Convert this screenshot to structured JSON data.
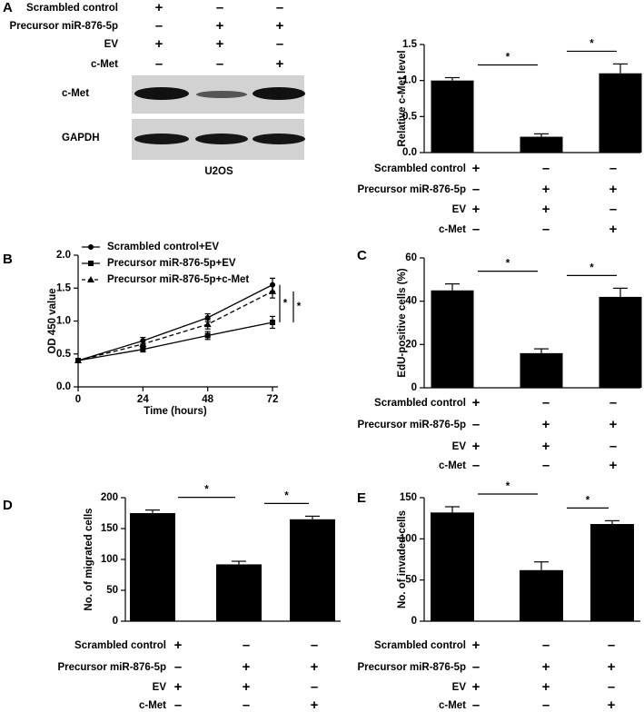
{
  "blot": {
    "panel": "A",
    "conditions": [
      {
        "label": "Scrambled control",
        "signs": [
          "+",
          "–",
          "–"
        ]
      },
      {
        "label": "Precursor miR-876-5p",
        "signs": [
          "–",
          "+",
          "+"
        ]
      },
      {
        "label": "EV",
        "signs": [
          "+",
          "+",
          "–"
        ]
      },
      {
        "label": "c-Met",
        "signs": [
          "–",
          "–",
          "+"
        ]
      }
    ],
    "bands": [
      "c-Met",
      "GAPDH"
    ],
    "cell_line": "U2OS"
  },
  "chart_data": [
    {
      "type": "bar",
      "ylabel": "Relative c-Met level",
      "values": [
        1.0,
        0.22,
        1.1
      ],
      "errors": [
        0.04,
        0.04,
        0.13
      ],
      "color": "#000000",
      "ylim": [
        0,
        1.5
      ],
      "yticks": [
        {
          "value": 0,
          "label": "0.0"
        },
        {
          "value": 0.5,
          "label": "0.5"
        },
        {
          "value": 1,
          "label": "1.0"
        },
        {
          "value": 1.5,
          "label": "1.5"
        }
      ],
      "annotations": [
        "*",
        "*"
      ],
      "conditions": [
        {
          "label": "Scrambled control",
          "signs": [
            "+",
            "–",
            "–"
          ]
        },
        {
          "label": "Precursor miR-876-5p",
          "signs": [
            "–",
            "+",
            "+"
          ]
        },
        {
          "label": "EV",
          "signs": [
            "+",
            "+",
            "–"
          ]
        },
        {
          "label": "c-Met",
          "signs": [
            "–",
            "–",
            "+"
          ]
        }
      ]
    },
    {
      "type": "line",
      "panel": "B",
      "xlabel": "Time (hours)",
      "ylabel": "OD 450 value",
      "x": [
        0,
        24,
        48,
        72
      ],
      "xlim": [
        0,
        72
      ],
      "xticks": [
        0,
        24,
        48,
        72
      ],
      "ylim": [
        0,
        2
      ],
      "yticks": [
        {
          "value": 0,
          "label": "0.0"
        },
        {
          "value": 0.5,
          "label": "0.5"
        },
        {
          "value": 1,
          "label": "1.0"
        },
        {
          "value": 1.5,
          "label": "1.5"
        },
        {
          "value": 2,
          "label": "2.0"
        }
      ],
      "series": [
        {
          "name": "Scrambled control+EV",
          "color": "#000000",
          "marker": "circle",
          "dash": "solid",
          "values": [
            0.4,
            0.7,
            1.05,
            1.55
          ],
          "errors": [
            0.02,
            0.05,
            0.06,
            0.1
          ]
        },
        {
          "name": "Precursor miR-876-5p+EV",
          "color": "#000000",
          "marker": "square",
          "dash": "solid",
          "values": [
            0.4,
            0.57,
            0.78,
            0.98
          ],
          "errors": [
            0.02,
            0.04,
            0.06,
            0.09
          ]
        },
        {
          "name": "Precursor miR-876-5p+c-Met",
          "color": "#000000",
          "marker": "triangle",
          "dash": "dashed",
          "values": [
            0.4,
            0.65,
            0.95,
            1.45
          ],
          "errors": [
            0.02,
            0.05,
            0.07,
            0.1
          ]
        }
      ],
      "annotations": [
        "*",
        "*"
      ]
    },
    {
      "type": "bar",
      "panel": "C",
      "ylabel": "EdU-positive cells (%)",
      "values": [
        45,
        16,
        42
      ],
      "errors": [
        3,
        2,
        4
      ],
      "color": "#000000",
      "ylim": [
        0,
        60
      ],
      "yticks": [
        0,
        20,
        40,
        60
      ],
      "annotations": [
        "*",
        "*"
      ],
      "conditions": [
        {
          "label": "Scrambled control",
          "signs": [
            "+",
            "–",
            "–"
          ]
        },
        {
          "label": "Precursor miR-876-5p",
          "signs": [
            "–",
            "+",
            "+"
          ]
        },
        {
          "label": "EV",
          "signs": [
            "+",
            "+",
            "–"
          ]
        },
        {
          "label": "c-Met",
          "signs": [
            "–",
            "–",
            "+"
          ]
        }
      ]
    },
    {
      "type": "bar",
      "panel": "D",
      "ylabel": "No. of migrated cells",
      "values": [
        175,
        92,
        165
      ],
      "errors": [
        5,
        5,
        5
      ],
      "color": "#000000",
      "ylim": [
        0,
        200
      ],
      "yticks": [
        0,
        50,
        100,
        150,
        200
      ],
      "annotations": [
        "*",
        "*"
      ],
      "conditions": [
        {
          "label": "Scrambled control",
          "signs": [
            "+",
            "–",
            "–"
          ]
        },
        {
          "label": "Precursor miR-876-5p",
          "signs": [
            "–",
            "+",
            "+"
          ]
        },
        {
          "label": "EV",
          "signs": [
            "+",
            "+",
            "–"
          ]
        },
        {
          "label": "c-Met",
          "signs": [
            "–",
            "–",
            "+"
          ]
        }
      ]
    },
    {
      "type": "bar",
      "panel": "E",
      "ylabel": "No. of invaded cells",
      "values": [
        132,
        62,
        118
      ],
      "errors": [
        7,
        10,
        4
      ],
      "color": "#000000",
      "ylim": [
        0,
        150
      ],
      "yticks": [
        0,
        50,
        100,
        150
      ],
      "annotations": [
        "*",
        "*"
      ],
      "conditions": [
        {
          "label": "Scrambled control",
          "signs": [
            "+",
            "–",
            "–"
          ]
        },
        {
          "label": "Precursor miR-876-5p",
          "signs": [
            "–",
            "+",
            "+"
          ]
        },
        {
          "label": "EV",
          "signs": [
            "+",
            "+",
            "–"
          ]
        },
        {
          "label": "c-Met",
          "signs": [
            "–",
            "–",
            "+"
          ]
        }
      ]
    }
  ]
}
